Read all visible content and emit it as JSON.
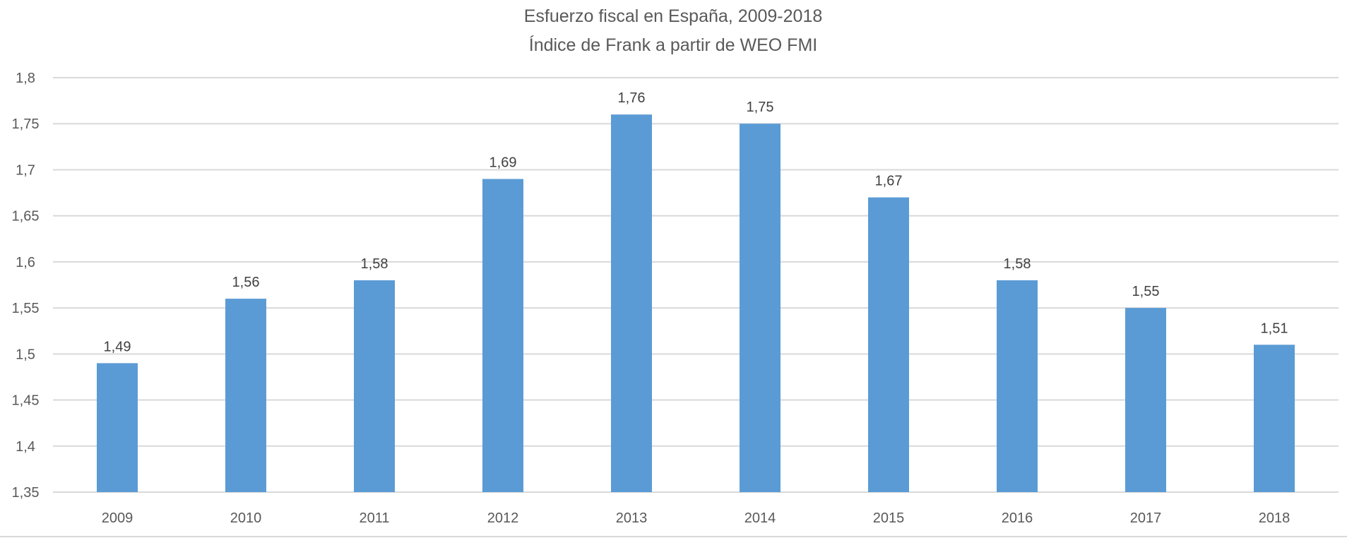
{
  "chart_data": {
    "type": "bar",
    "title": "Esfuerzo fiscal en España, 2009-2018",
    "subtitle": "Índice de Frank a partir de WEO FMI",
    "categories": [
      "2009",
      "2010",
      "2011",
      "2012",
      "2013",
      "2014",
      "2015",
      "2016",
      "2017",
      "2018"
    ],
    "values": [
      1.49,
      1.56,
      1.58,
      1.69,
      1.76,
      1.75,
      1.67,
      1.58,
      1.55,
      1.51
    ],
    "data_labels": [
      "1,49",
      "1,56",
      "1,58",
      "1,69",
      "1,76",
      "1,75",
      "1,67",
      "1,58",
      "1,55",
      "1,51"
    ],
    "xlabel": "",
    "ylabel": "",
    "ylim": [
      1.35,
      1.8
    ],
    "yticks": [
      1.35,
      1.4,
      1.45,
      1.5,
      1.55,
      1.6,
      1.65,
      1.7,
      1.75,
      1.8
    ],
    "ytick_labels": [
      "1,35",
      "1,4",
      "1,45",
      "1,5",
      "1,55",
      "1,6",
      "1,65",
      "1,7",
      "1,75",
      "1,8"
    ],
    "grid": true,
    "legend": "none",
    "colors": {
      "bar": "#5B9BD5",
      "grid": "#D9D9D9",
      "text": "#595959"
    }
  }
}
